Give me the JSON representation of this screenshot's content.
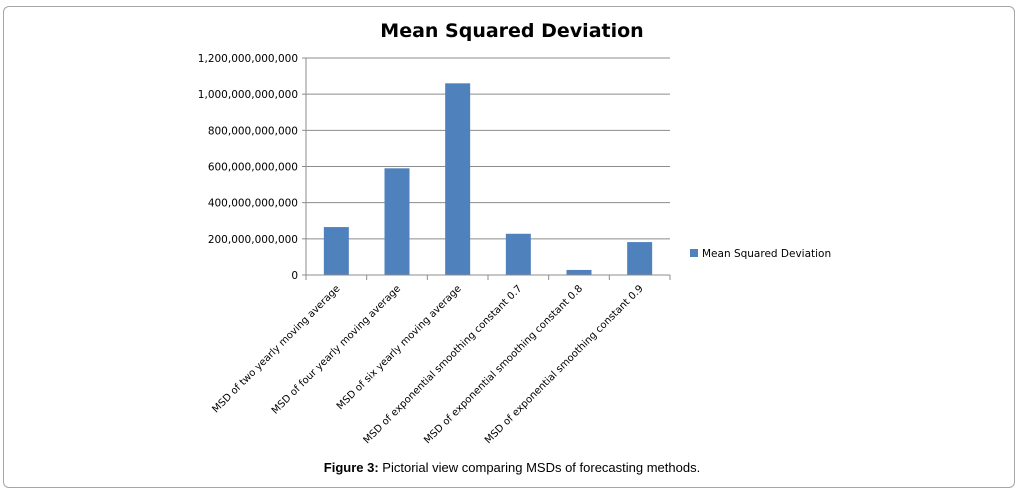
{
  "chart_data": {
    "type": "bar",
    "title": "Mean Squared Deviation",
    "categories": [
      "MSD of two yearly moving average",
      "MSD of four yearly moving average",
      "MSD of six yearly moving average",
      "MSD of exponential smoothing constant 0.7",
      "MSD of exponential smoothing constant 0.8",
      "MSD of exponential smoothing constant 0.9"
    ],
    "series": [
      {
        "name": "Mean Squared Deviation",
        "color": "#4f81bd",
        "values": [
          265000000000,
          590000000000,
          1060000000000,
          228000000000,
          28000000000,
          182000000000
        ]
      }
    ],
    "yticks": [
      0,
      200000000000,
      400000000000,
      600000000000,
      800000000000,
      1000000000000,
      1200000000000
    ],
    "ytick_labels": [
      "0",
      "200,000,000,000",
      "400,000,000,000",
      "600,000,000,000",
      "800,000,000,000",
      "1,000,000,000,000",
      "1,200,000,000,000"
    ],
    "ylim": [
      0,
      1200000000000
    ],
    "xlabel": "",
    "ylabel": "",
    "grid": true,
    "legend_position": "right"
  },
  "caption": {
    "lead": "Figure 3:",
    "text": " Pictorial view comparing MSDs of forecasting methods."
  }
}
